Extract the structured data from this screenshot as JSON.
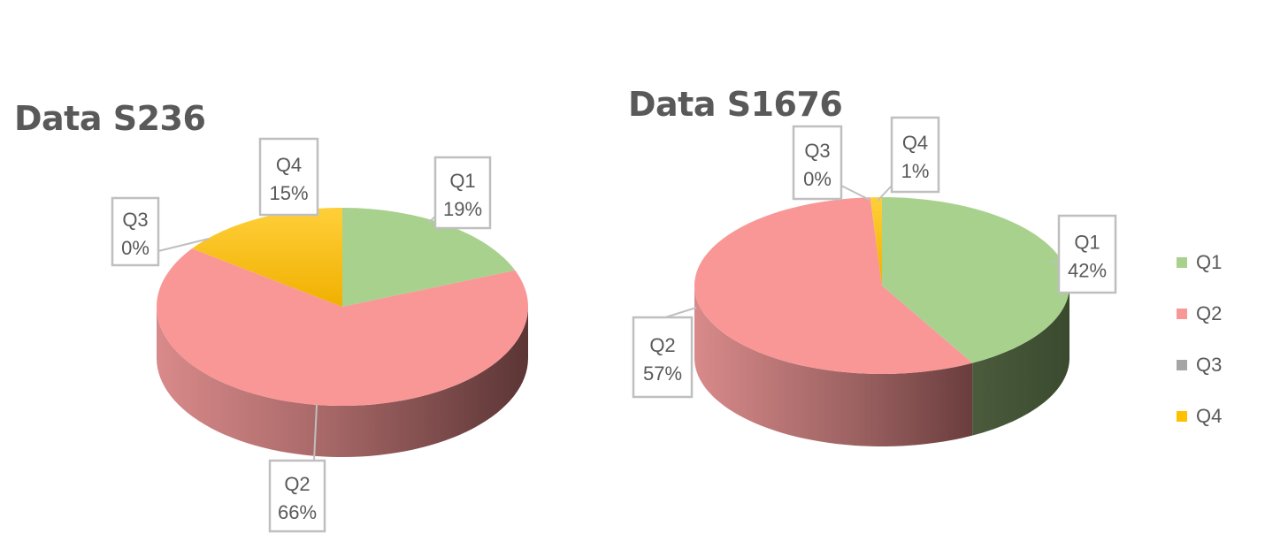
{
  "chart_data": [
    {
      "type": "pie",
      "title": "Data S236",
      "categories": [
        "Q1",
        "Q2",
        "Q3",
        "Q4"
      ],
      "values": [
        19,
        66,
        0,
        15
      ],
      "labels": [
        "19%",
        "66%",
        "0%",
        "15%"
      ]
    },
    {
      "type": "pie",
      "title": "Data S1676",
      "categories": [
        "Q1",
        "Q2",
        "Q3",
        "Q4"
      ],
      "values": [
        42,
        57,
        0,
        1
      ],
      "labels": [
        "42%",
        "57%",
        "0%",
        "1%"
      ]
    }
  ],
  "legend": {
    "placement": "right",
    "items": [
      {
        "label": "Q1",
        "color": "#a9d18e"
      },
      {
        "label": "Q2",
        "color": "#f99797"
      },
      {
        "label": "Q3",
        "color": "#a5a5a5"
      },
      {
        "label": "Q4",
        "color": "#ffc000"
      }
    ]
  }
}
